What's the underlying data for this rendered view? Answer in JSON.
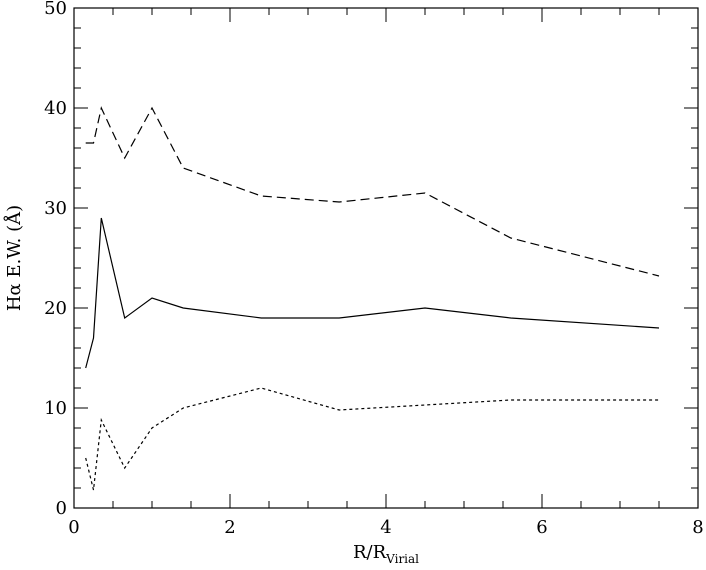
{
  "chart_data": {
    "type": "line",
    "xlabel_main": "R/R",
    "xlabel_sub": "Virial",
    "ylabel_main": "Hα E.W. (Å)",
    "xlim": [
      0,
      8
    ],
    "ylim": [
      0,
      50
    ],
    "x_ticks": [
      "0",
      "2",
      "4",
      "6",
      "8"
    ],
    "y_ticks": [
      "0",
      "10",
      "20",
      "30",
      "40",
      "50"
    ],
    "grid": false,
    "series": [
      {
        "style": "dashed",
        "x": [
          0.15,
          0.25,
          0.35,
          0.65,
          1.0,
          1.4,
          2.4,
          3.4,
          4.5,
          5.6,
          7.5
        ],
        "y": [
          36.5,
          36.5,
          40.0,
          35.0,
          40.0,
          34.0,
          31.2,
          30.6,
          31.5,
          27.0,
          23.2
        ]
      },
      {
        "style": "solid",
        "x": [
          0.15,
          0.25,
          0.35,
          0.65,
          1.0,
          1.4,
          2.4,
          3.4,
          4.5,
          5.6,
          7.5
        ],
        "y": [
          14.0,
          17.0,
          29.0,
          19.0,
          21.0,
          20.0,
          19.0,
          19.0,
          20.0,
          19.0,
          18.0
        ]
      },
      {
        "style": "dotted",
        "x": [
          0.15,
          0.25,
          0.35,
          0.65,
          1.0,
          1.4,
          2.4,
          3.4,
          4.5,
          5.6,
          7.5
        ],
        "y": [
          5.0,
          1.8,
          8.8,
          4.0,
          8.0,
          10.0,
          12.0,
          9.8,
          10.3,
          10.8,
          10.8
        ]
      }
    ]
  }
}
